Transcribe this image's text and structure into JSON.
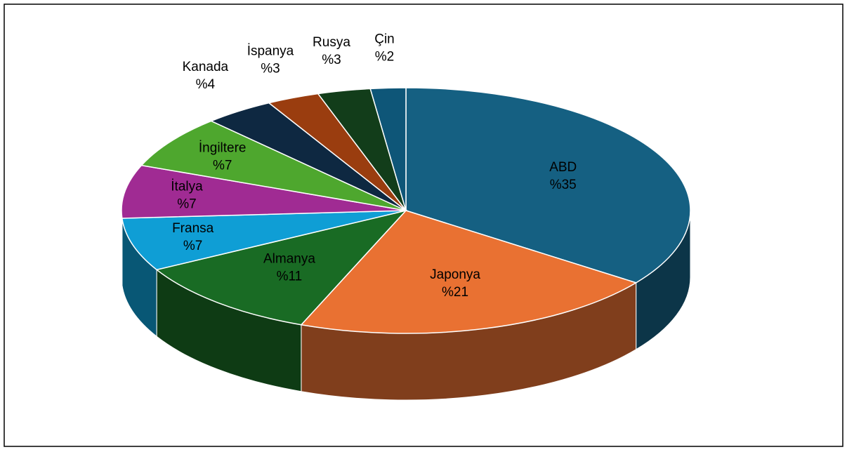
{
  "chart_data": {
    "type": "pie",
    "categories": [
      "ABD",
      "Japonya",
      "Almanya",
      "Fransa",
      "İtalya",
      "İngiltere",
      "Kanada",
      "İspanya",
      "Rusya",
      "Çin"
    ],
    "values": [
      35,
      21,
      11,
      7,
      7,
      7,
      4,
      3,
      3,
      2
    ],
    "value_labels": [
      "%35",
      "%21",
      "%11",
      "%7",
      "%7",
      "%7",
      "%4",
      "%3",
      "%3",
      "%2"
    ],
    "colors": [
      "#156082",
      "#e97132",
      "#196b24",
      "#0f9ed5",
      "#a02b93",
      "#4ea72e",
      "#0e2841",
      "#9a3d0f",
      "#123d1a",
      "#0e5678"
    ]
  }
}
